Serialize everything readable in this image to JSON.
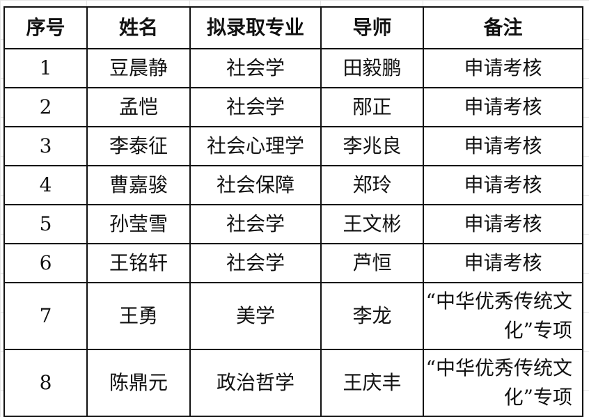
{
  "table": {
    "headers": [
      "序号",
      "姓名",
      "拟录取专业",
      "导师",
      "备注"
    ],
    "rows": [
      [
        "1",
        "豆晨静",
        "社会学",
        "田毅鹏",
        "申请考核"
      ],
      [
        "2",
        "孟恺",
        "社会学",
        "邴正",
        "申请考核"
      ],
      [
        "3",
        "李泰征",
        "社会心理学",
        "李兆良",
        "申请考核"
      ],
      [
        "4",
        "曹嘉骏",
        "社会保障",
        "郑玲",
        "申请考核"
      ],
      [
        "5",
        "孙莹雪",
        "社会学",
        "王文彬",
        "申请考核"
      ],
      [
        "6",
        "王铭轩",
        "社会学",
        "芦恒",
        "申请考核"
      ],
      [
        "7",
        "王勇",
        "美学",
        "李龙",
        "“中华优秀传统文化”专项"
      ],
      [
        "8",
        "陈鼎元",
        "政治哲学",
        "王庆丰",
        "“中华优秀传统文化”专项"
      ]
    ]
  }
}
